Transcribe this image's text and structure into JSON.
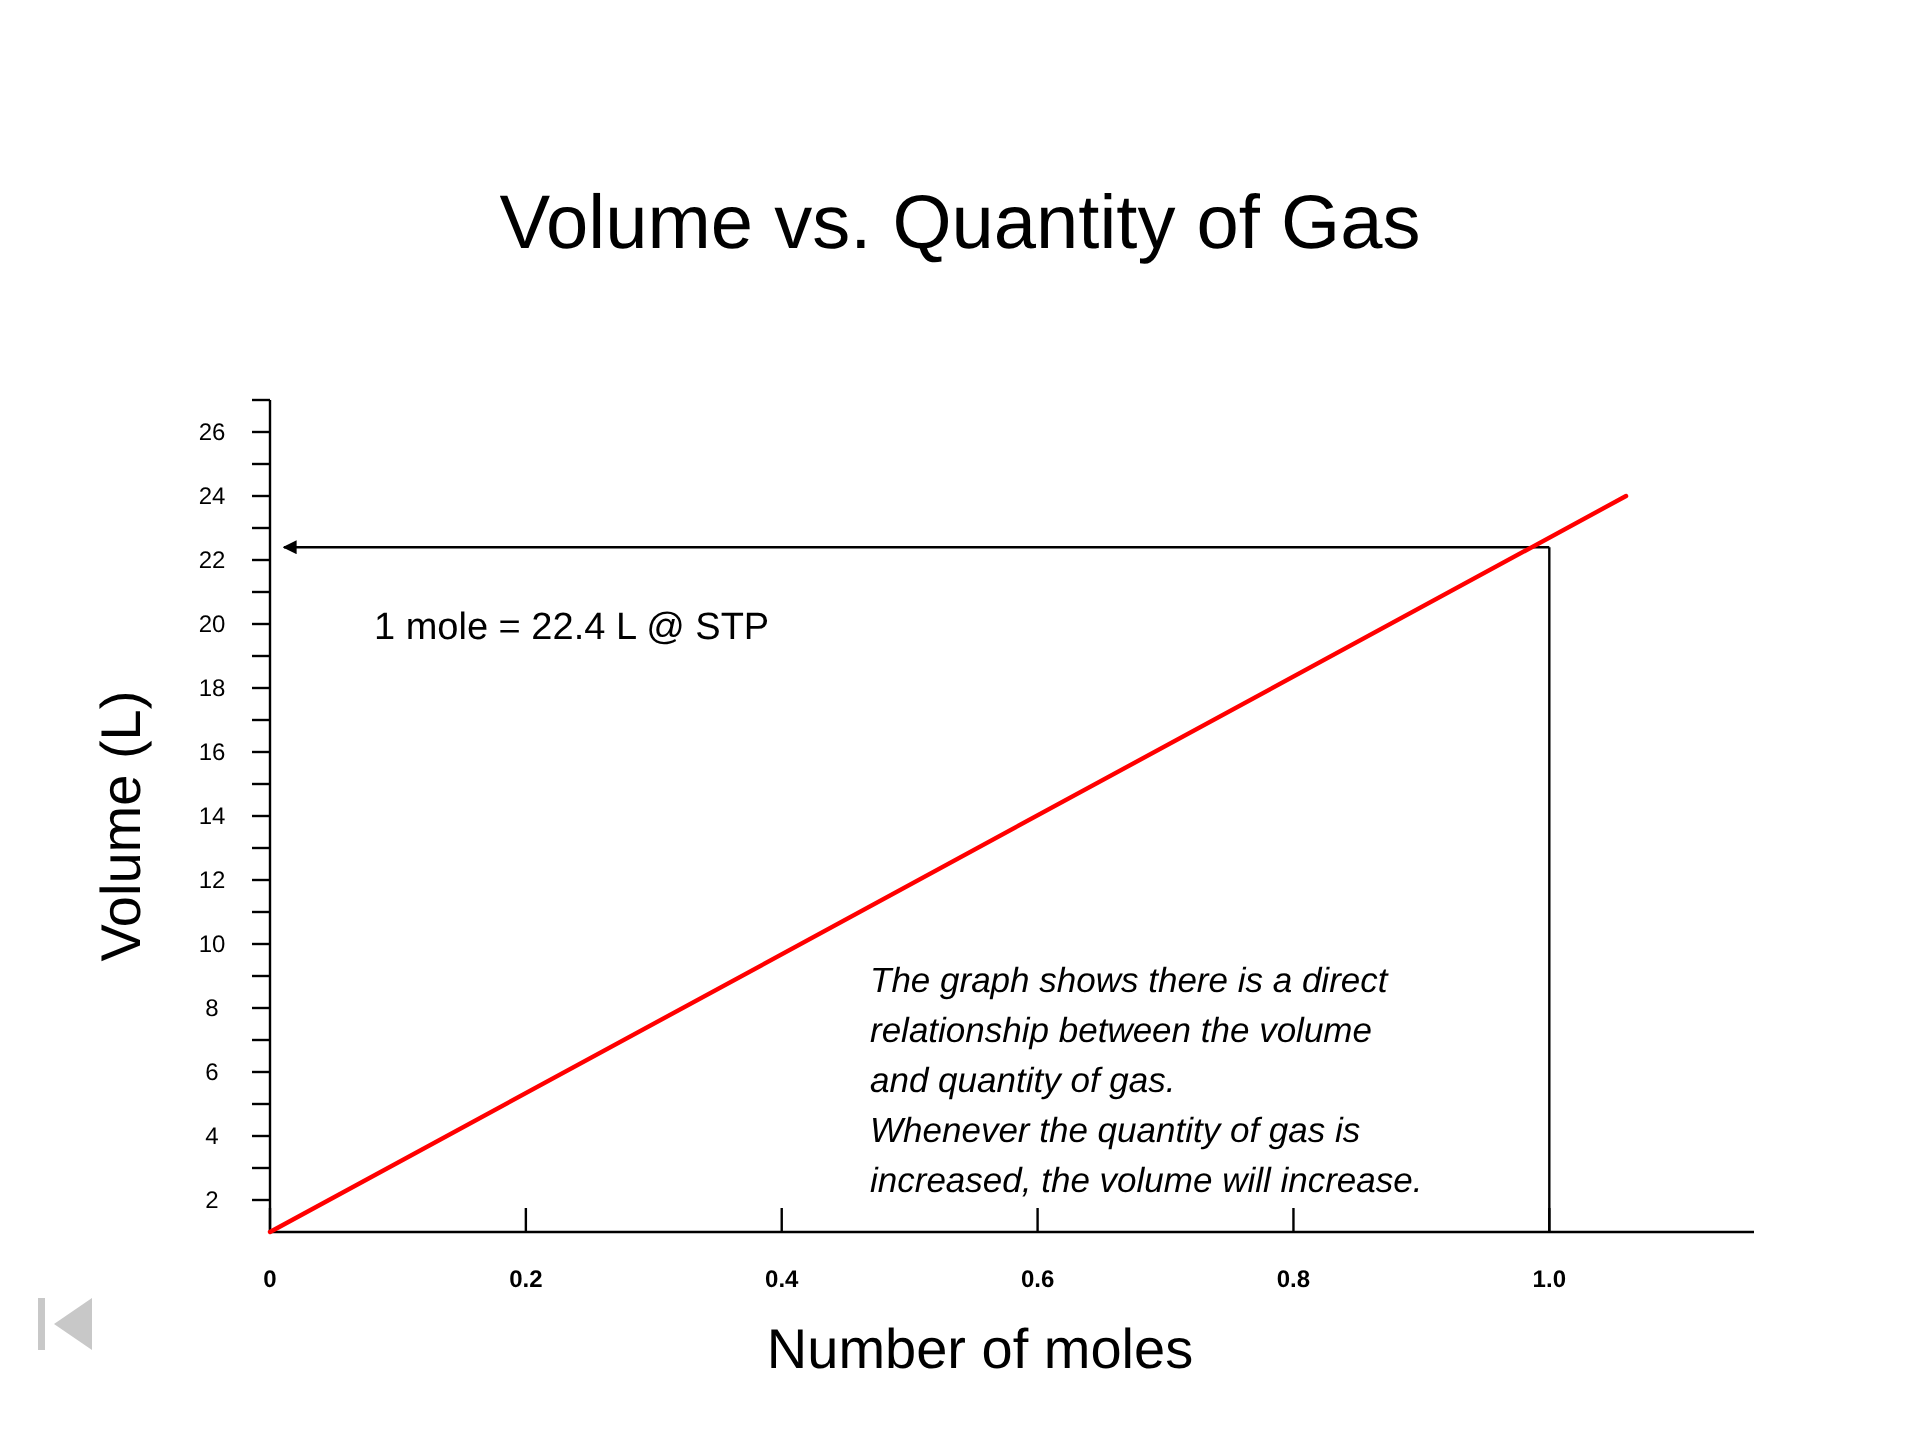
{
  "chart_data": {
    "type": "line",
    "title": "Volume vs. Quantity of Gas",
    "xlabel": "Number of moles",
    "ylabel": "Volume (L)",
    "x": [
      0,
      1.06
    ],
    "values": [
      1,
      24
    ],
    "color": "#ff0000",
    "xlim": [
      0,
      1.16
    ],
    "ylim": [
      1,
      27
    ],
    "xticks": [
      0,
      0.2,
      0.4,
      0.6,
      0.8,
      {
        "value": 1,
        "label": "1.0"
      }
    ],
    "yticks": [
      2,
      {
        "value": 3,
        "label": null
      },
      4,
      {
        "value": 5,
        "label": null
      },
      6,
      {
        "value": 7,
        "label": null
      },
      8,
      {
        "value": 9,
        "label": null
      },
      10,
      {
        "value": 11,
        "label": null
      },
      12,
      {
        "value": 13,
        "label": null
      },
      14,
      {
        "value": 15,
        "label": null
      },
      16,
      {
        "value": 17,
        "label": null
      },
      18,
      {
        "value": 19,
        "label": null
      },
      20,
      {
        "value": 21,
        "label": null
      },
      22,
      {
        "value": 23,
        "label": null
      },
      24,
      {
        "value": 25,
        "label": null
      },
      26,
      {
        "value": 27,
        "label": null
      }
    ],
    "ref_lines": [
      {
        "axis": "y",
        "value": 22.4,
        "label": "1 mole = 22.4 L @ STP",
        "color": "#000000"
      },
      {
        "axis": "x",
        "value": 1,
        "color": "#000000"
      }
    ],
    "annotations": [
      "The graph shows there is a direct\nrelationship between the volume\nand quantity of gas.\nWhenever the quantity of gas is\nincreased, the volume will increase."
    ]
  }
}
